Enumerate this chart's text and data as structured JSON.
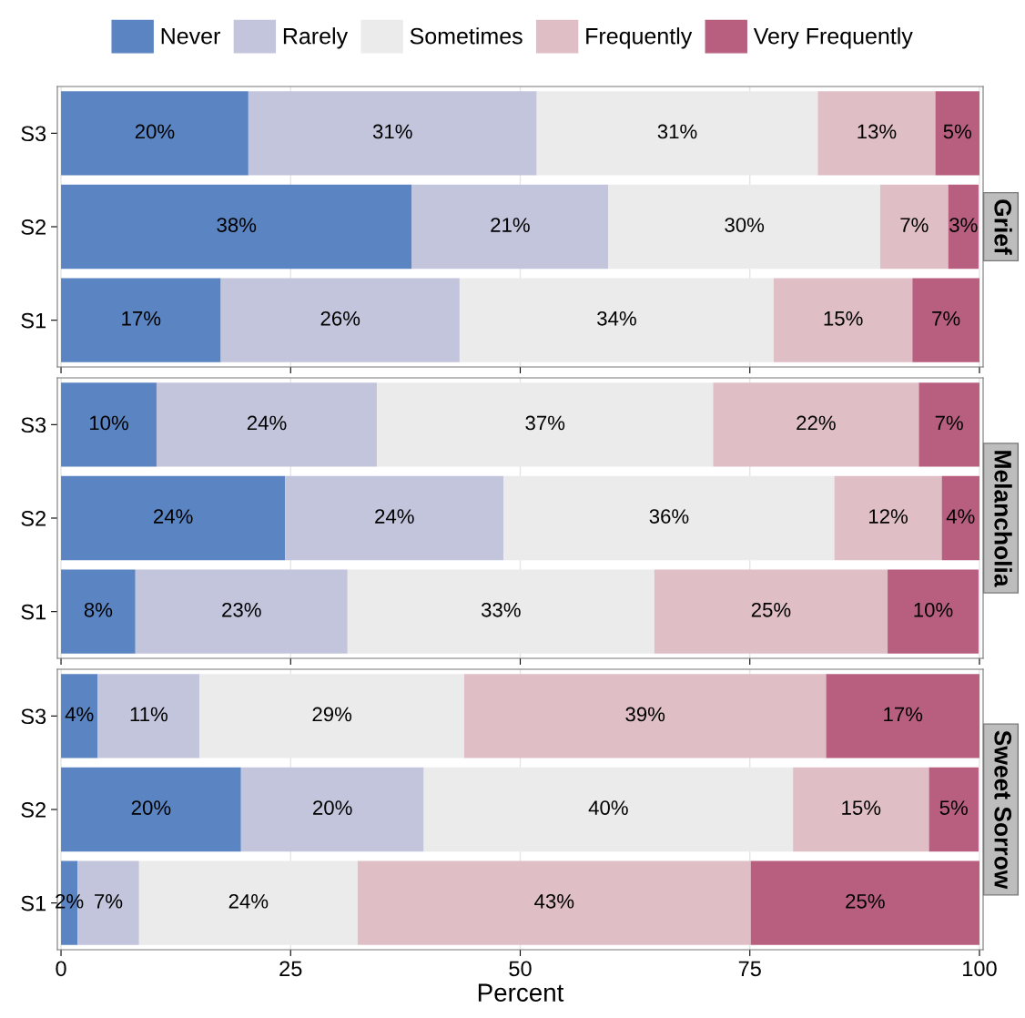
{
  "chart_data": [
    {
      "type": "bar",
      "title": "Grief",
      "orientation": "horizontal",
      "stacked": true,
      "categories": [
        "S3",
        "S2",
        "S1"
      ],
      "xlim": [
        -0.4,
        100.4
      ],
      "xticks": [
        0,
        25,
        50,
        75,
        100
      ],
      "grid": "x",
      "legend": "top",
      "tick_labels": "y",
      "series": [
        {
          "name": "Never",
          "color": "#5b84c2",
          "values": [
            20.4,
            38.2,
            17.4
          ],
          "value_labels": [
            "20%",
            "38%",
            "17%"
          ]
        },
        {
          "name": "Rarely",
          "color": "#c3c5dc",
          "values": [
            31.4,
            21.4,
            26.0
          ],
          "value_labels": [
            "31%",
            "21%",
            "26%"
          ]
        },
        {
          "name": "Sometimes",
          "color": "#ebebeb",
          "values": [
            30.6,
            29.6,
            34.2
          ],
          "value_labels": [
            "31%",
            "30%",
            "34%"
          ]
        },
        {
          "name": "Frequently",
          "color": "#dfbfc5",
          "values": [
            12.8,
            7.4,
            15.1
          ],
          "value_labels": [
            "13%",
            "7%",
            "15%"
          ]
        },
        {
          "name": "Very Frequently",
          "color": "#b85f80",
          "values": [
            4.8,
            3.3,
            7.3
          ],
          "value_labels": [
            "5%",
            "3%",
            "7%"
          ]
        }
      ]
    },
    {
      "type": "bar",
      "title": "Melancholia",
      "orientation": "horizontal",
      "stacked": true,
      "categories": [
        "S3",
        "S2",
        "S1"
      ],
      "xlim": [
        -0.4,
        100.4
      ],
      "xticks": [
        0,
        25,
        50,
        75,
        100
      ],
      "grid": "x",
      "tick_labels": "y",
      "series": [
        {
          "color": "#5b84c2",
          "values": [
            10.4,
            24.4,
            8.1
          ],
          "value_labels": [
            "10%",
            "24%",
            "8%"
          ]
        },
        {
          "color": "#c3c5dc",
          "values": [
            24.0,
            23.8,
            23.1
          ],
          "value_labels": [
            "24%",
            "24%",
            "23%"
          ]
        },
        {
          "color": "#ebebeb",
          "values": [
            36.6,
            36.0,
            33.4
          ],
          "value_labels": [
            "37%",
            "36%",
            "33%"
          ]
        },
        {
          "color": "#dfbfc5",
          "values": [
            22.4,
            11.7,
            25.4
          ],
          "value_labels": [
            "22%",
            "12%",
            "25%"
          ]
        },
        {
          "color": "#b85f80",
          "values": [
            6.6,
            4.1,
            9.9
          ],
          "value_labels": [
            "7%",
            "4%",
            "10%"
          ]
        }
      ]
    },
    {
      "type": "bar",
      "title": "Sweet Sorrow",
      "orientation": "horizontal",
      "stacked": true,
      "categories": [
        "S3",
        "S2",
        "S1"
      ],
      "xlim": [
        -0.4,
        100.4
      ],
      "xticks": [
        0,
        25,
        50,
        75,
        100
      ],
      "grid": "x",
      "xlabel": "Percent",
      "series": [
        {
          "color": "#5b84c2",
          "values": [
            4.0,
            19.6,
            1.8
          ],
          "value_labels": [
            "4%",
            "20%",
            "2%"
          ]
        },
        {
          "color": "#c3c5dc",
          "values": [
            11.1,
            19.9,
            6.7
          ],
          "value_labels": [
            "11%",
            "20%",
            "7%"
          ]
        },
        {
          "color": "#ebebeb",
          "values": [
            28.8,
            40.2,
            23.8
          ],
          "value_labels": [
            "29%",
            "40%",
            "24%"
          ]
        },
        {
          "color": "#dfbfc5",
          "values": [
            39.4,
            14.8,
            42.8
          ],
          "value_labels": [
            "39%",
            "15%",
            "43%"
          ]
        },
        {
          "color": "#b85f80",
          "values": [
            16.7,
            5.4,
            24.9
          ],
          "value_labels": [
            "17%",
            "5%",
            "25%"
          ]
        }
      ]
    }
  ]
}
